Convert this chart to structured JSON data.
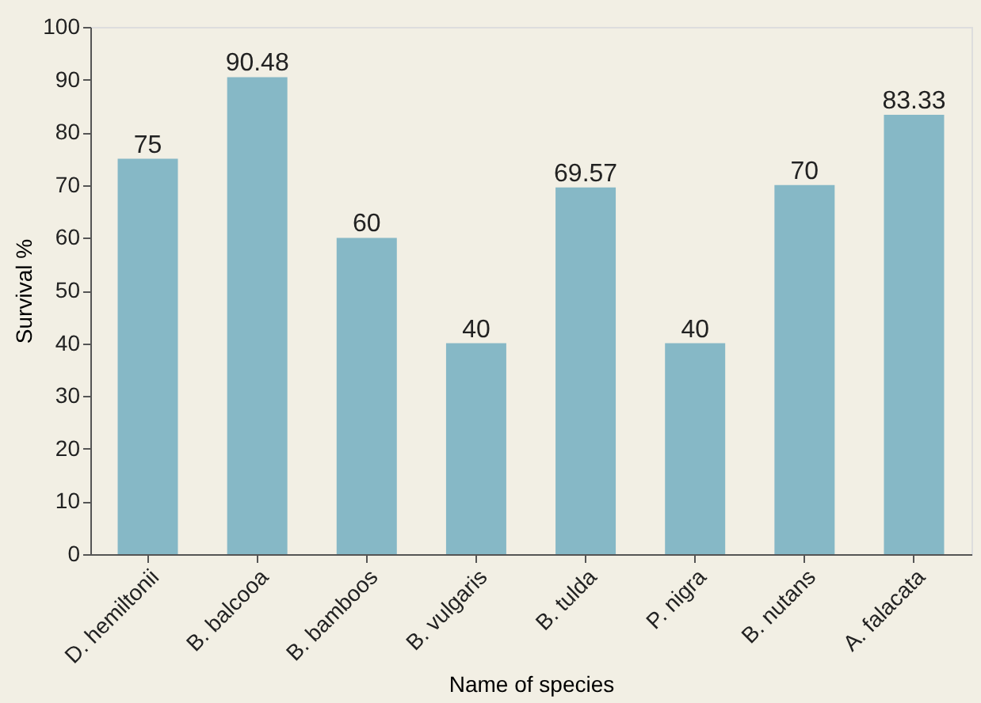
{
  "chart_data": {
    "type": "bar",
    "xlabel": "Name of species",
    "ylabel": "Survival %",
    "categories": [
      "D. hemiltonii",
      "B. balcooa",
      "B. bamboos",
      "B. vulgaris",
      "B. tulda",
      "P. nigra",
      "B. nutans",
      "A. falacata"
    ],
    "values": [
      75,
      90.48,
      60,
      40,
      69.57,
      40,
      70,
      83.33
    ],
    "color": "#86b8c6",
    "ylim": [
      0,
      100
    ],
    "yticks": [
      0,
      10,
      20,
      30,
      40,
      50,
      60,
      70,
      80,
      90,
      100
    ],
    "data_labels": true,
    "grid": false
  }
}
